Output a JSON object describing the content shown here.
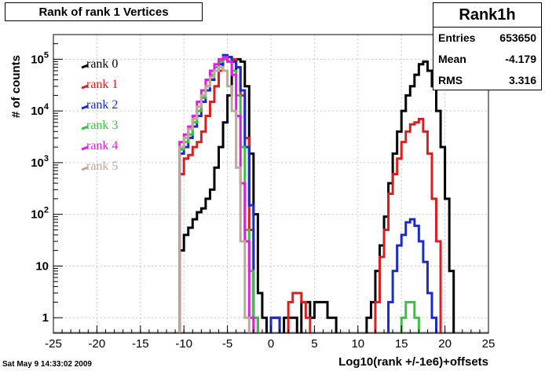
{
  "title": "Rank of rank 1 Vertices",
  "stats": {
    "name": "Rank1h",
    "rows": [
      {
        "label": "Entries",
        "value": "653650"
      },
      {
        "label": "Mean",
        "value": "-4.179"
      },
      {
        "label": "RMS",
        "value": "3.316"
      }
    ]
  },
  "footer": "Sat May  9 14:33:02 2009",
  "colors": {
    "frame": "#000000",
    "grid": "#c8c8c8",
    "fill_line": "#9a9a9a"
  },
  "chart_data": {
    "type": "line",
    "title": "Rank of rank 1 Vertices",
    "xlabel": "Log10(rank +/-1e6)+offsets",
    "ylabel": "# of counts",
    "xlim": [
      -25,
      25
    ],
    "ylim": [
      0.5,
      300000
    ],
    "yscale": "log",
    "grid": true,
    "legend_position": "top-left",
    "xticks": [
      -25,
      -20,
      -15,
      -10,
      -5,
      0,
      5,
      10,
      15,
      20,
      25
    ],
    "yticks": [
      {
        "value": 1,
        "label": "1"
      },
      {
        "value": 10,
        "label": "10"
      },
      {
        "value": 100,
        "label": "10^2"
      },
      {
        "value": 1000,
        "label": "10^3"
      },
      {
        "value": 10000,
        "label": "10^4"
      },
      {
        "value": 100000,
        "label": "10^5"
      }
    ],
    "series": [
      {
        "name": "rank 0",
        "color": "#000000",
        "points": [
          [
            -10.5,
            20
          ],
          [
            -10,
            40
          ],
          [
            -9.5,
            55
          ],
          [
            -9,
            80
          ],
          [
            -8.5,
            110
          ],
          [
            -8,
            130
          ],
          [
            -7.5,
            200
          ],
          [
            -7,
            300
          ],
          [
            -6.5,
            800
          ],
          [
            -6,
            2000
          ],
          [
            -5.5,
            6000
          ],
          [
            -5,
            20000
          ],
          [
            -4.5,
            60000
          ],
          [
            -4,
            100000
          ],
          [
            -3.5,
            90000
          ],
          [
            -3,
            30000
          ],
          [
            -2.5,
            1500
          ],
          [
            -2,
            100
          ],
          [
            -1.5,
            3
          ],
          [
            -1,
            1
          ],
          [
            0,
            1
          ],
          [
            0.5,
            1
          ],
          [
            1.5,
            1
          ],
          [
            2,
            1
          ],
          [
            2.5,
            1
          ],
          [
            3.5,
            2
          ],
          [
            4,
            2
          ],
          [
            4.5,
            1
          ],
          [
            5,
            2
          ],
          [
            5.5,
            2
          ],
          [
            6,
            2
          ],
          [
            6.5,
            1
          ],
          [
            7,
            1
          ],
          [
            11,
            1
          ],
          [
            11.5,
            2
          ],
          [
            12,
            8
          ],
          [
            12.5,
            25
          ],
          [
            13,
            90
          ],
          [
            13.5,
            400
          ],
          [
            14,
            1500
          ],
          [
            14.5,
            4000
          ],
          [
            15,
            10000
          ],
          [
            15.5,
            20000
          ],
          [
            16,
            30000
          ],
          [
            16.5,
            50000
          ],
          [
            17,
            80000
          ],
          [
            17.5,
            90000
          ],
          [
            18,
            60000
          ],
          [
            18.5,
            30000
          ],
          [
            19,
            10000
          ],
          [
            19.5,
            2000
          ],
          [
            20,
            200
          ],
          [
            20.5,
            8
          ]
        ]
      },
      {
        "name": "rank 1",
        "color": "#d82020",
        "points": [
          [
            -10.5,
            600
          ],
          [
            -10,
            1200
          ],
          [
            -9.5,
            1400
          ],
          [
            -9,
            2000
          ],
          [
            -8.5,
            2500
          ],
          [
            -8,
            4000
          ],
          [
            -7.5,
            8000
          ],
          [
            -7,
            15000
          ],
          [
            -6.5,
            30000
          ],
          [
            -6,
            60000
          ],
          [
            -5.5,
            100000
          ],
          [
            -5,
            110000
          ],
          [
            -4.5,
            100000
          ],
          [
            -4,
            70000
          ],
          [
            -3.5,
            20000
          ],
          [
            -3,
            3000
          ],
          [
            -2.5,
            50
          ],
          [
            2,
            2
          ],
          [
            2.5,
            3
          ],
          [
            3,
            3
          ],
          [
            3.5,
            2
          ],
          [
            4,
            1
          ],
          [
            12,
            2
          ],
          [
            12.5,
            15
          ],
          [
            13,
            50
          ],
          [
            13.5,
            250
          ],
          [
            14,
            600
          ],
          [
            14.5,
            1200
          ],
          [
            15,
            2500
          ],
          [
            15.5,
            4000
          ],
          [
            16,
            5500
          ],
          [
            16.5,
            6000
          ],
          [
            17,
            7000
          ],
          [
            17.5,
            4000
          ],
          [
            18,
            1500
          ],
          [
            18.5,
            200
          ],
          [
            19,
            30
          ]
        ]
      },
      {
        "name": "rank 2",
        "color": "#1a2acc",
        "points": [
          [
            -10.5,
            1500
          ],
          [
            -10,
            2000
          ],
          [
            -9.5,
            3000
          ],
          [
            -9,
            5000
          ],
          [
            -8.5,
            8000
          ],
          [
            -8,
            15000
          ],
          [
            -7.5,
            25000
          ],
          [
            -7,
            40000
          ],
          [
            -6.5,
            60000
          ],
          [
            -6,
            80000
          ],
          [
            -5.5,
            120000
          ],
          [
            -5,
            110000
          ],
          [
            -4.5,
            90000
          ],
          [
            -4,
            70000
          ],
          [
            -3.5,
            25000
          ],
          [
            -3,
            2000
          ],
          [
            -2.5,
            150
          ],
          [
            -2,
            1
          ],
          [
            0,
            1
          ],
          [
            0.5,
            1
          ],
          [
            13.5,
            2
          ],
          [
            14,
            8
          ],
          [
            14.5,
            25
          ],
          [
            15,
            40
          ],
          [
            15.5,
            70
          ],
          [
            16,
            80
          ],
          [
            16.5,
            60
          ],
          [
            17,
            30
          ],
          [
            17.5,
            12
          ],
          [
            18,
            3
          ],
          [
            18.5,
            1
          ]
        ]
      },
      {
        "name": "rank 3",
        "color": "#44bb44",
        "points": [
          [
            -10.5,
            1800
          ],
          [
            -10,
            2500
          ],
          [
            -9.5,
            3500
          ],
          [
            -9,
            6000
          ],
          [
            -8.5,
            10000
          ],
          [
            -8,
            18000
          ],
          [
            -7.5,
            30000
          ],
          [
            -7,
            50000
          ],
          [
            -6.5,
            70000
          ],
          [
            -6,
            90000
          ],
          [
            -5.5,
            100000
          ],
          [
            -5,
            90000
          ],
          [
            -4.5,
            60000
          ],
          [
            -4,
            20000
          ],
          [
            -3.5,
            2000
          ],
          [
            -3,
            50
          ],
          [
            -2.5,
            8
          ],
          [
            -2,
            1
          ],
          [
            15,
            1
          ],
          [
            15.5,
            2
          ],
          [
            16,
            2
          ],
          [
            16.5,
            1
          ]
        ]
      },
      {
        "name": "rank 4",
        "color": "#e020e0",
        "points": [
          [
            -10.5,
            2500
          ],
          [
            -10,
            3500
          ],
          [
            -9.5,
            5000
          ],
          [
            -9,
            8000
          ],
          [
            -8.5,
            15000
          ],
          [
            -8,
            25000
          ],
          [
            -7.5,
            40000
          ],
          [
            -7,
            60000
          ],
          [
            -6.5,
            80000
          ],
          [
            -6,
            100000
          ],
          [
            -5.5,
            110000
          ],
          [
            -5,
            90000
          ],
          [
            -4.5,
            50000
          ],
          [
            -4,
            8000
          ],
          [
            -3.5,
            400
          ],
          [
            -3,
            30
          ],
          [
            -2.5,
            1
          ]
        ]
      },
      {
        "name": "rank 5",
        "color": "#bba99a",
        "points": [
          [
            -10.5,
            2000
          ],
          [
            -10,
            3000
          ],
          [
            -9.5,
            4500
          ],
          [
            -9,
            7000
          ],
          [
            -8.5,
            12000
          ],
          [
            -8,
            20000
          ],
          [
            -7.5,
            30000
          ],
          [
            -7,
            45000
          ],
          [
            -6.5,
            60000
          ],
          [
            -6,
            70000
          ],
          [
            -5.5,
            60000
          ],
          [
            -5,
            30000
          ],
          [
            -4.5,
            10000
          ],
          [
            -4,
            800
          ],
          [
            -3.5,
            30
          ],
          [
            -3,
            1
          ]
        ]
      }
    ]
  }
}
